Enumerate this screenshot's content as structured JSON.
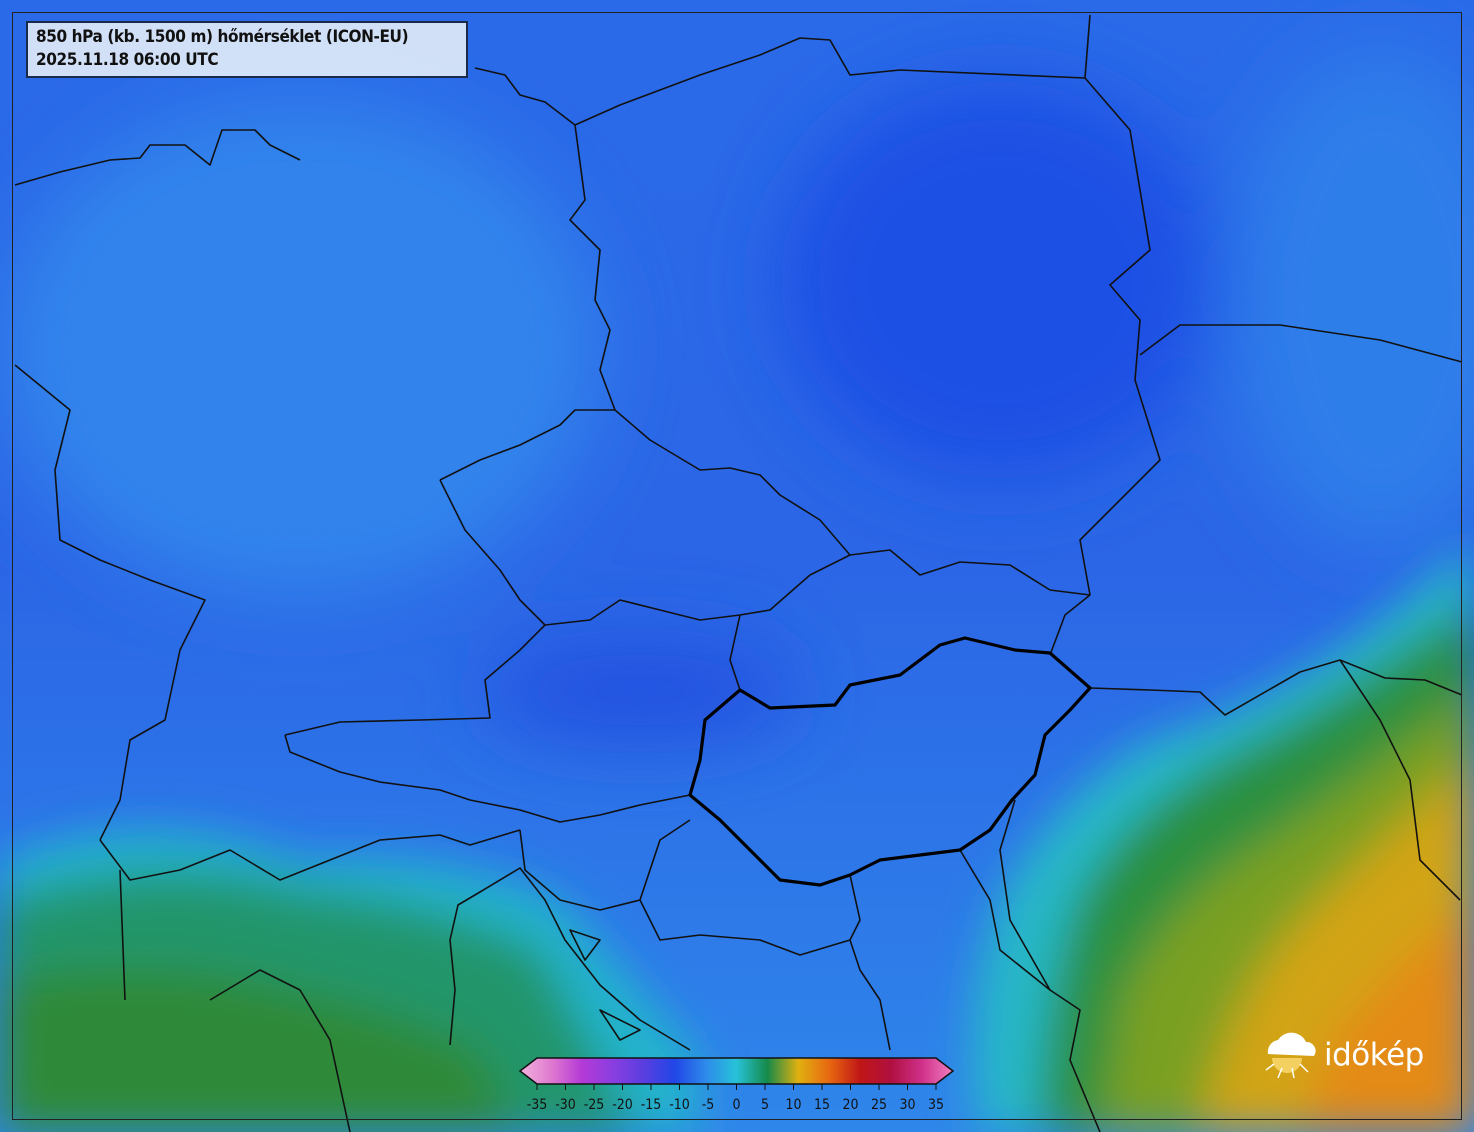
{
  "title": {
    "line1": "850 hPa (kb. 1500 m) hőmérséklet (ICON-EU)",
    "line2": "2025.11.18 06:00 UTC"
  },
  "colorbar": {
    "unit_values": [
      -35,
      -30,
      -25,
      -20,
      -15,
      -10,
      -5,
      0,
      5,
      10,
      15,
      20,
      25,
      30,
      35
    ],
    "labels": [
      "-35",
      "-30",
      "-25",
      "-20",
      "-15",
      "-10",
      "-5",
      "0",
      "5",
      "10",
      "15",
      "20",
      "25",
      "30",
      "35"
    ],
    "colors": [
      "#f2b3dc",
      "#e07ad0",
      "#b43ad6",
      "#8a3ee0",
      "#5a3ee0",
      "#2146e6",
      "#2d8aea",
      "#27c2d8",
      "#168a4a",
      "#e0b010",
      "#e86810",
      "#c01616",
      "#b01040",
      "#d0308a",
      "#f080c0"
    ]
  },
  "logo": {
    "text": "időkép",
    "icon": "sun-cloud-icon"
  },
  "colors": {
    "cold_blue": "#2e72e6",
    "green": "#2e8a3a",
    "yellow": "#d8a010",
    "orange": "#e48a10",
    "border": "#111111"
  }
}
